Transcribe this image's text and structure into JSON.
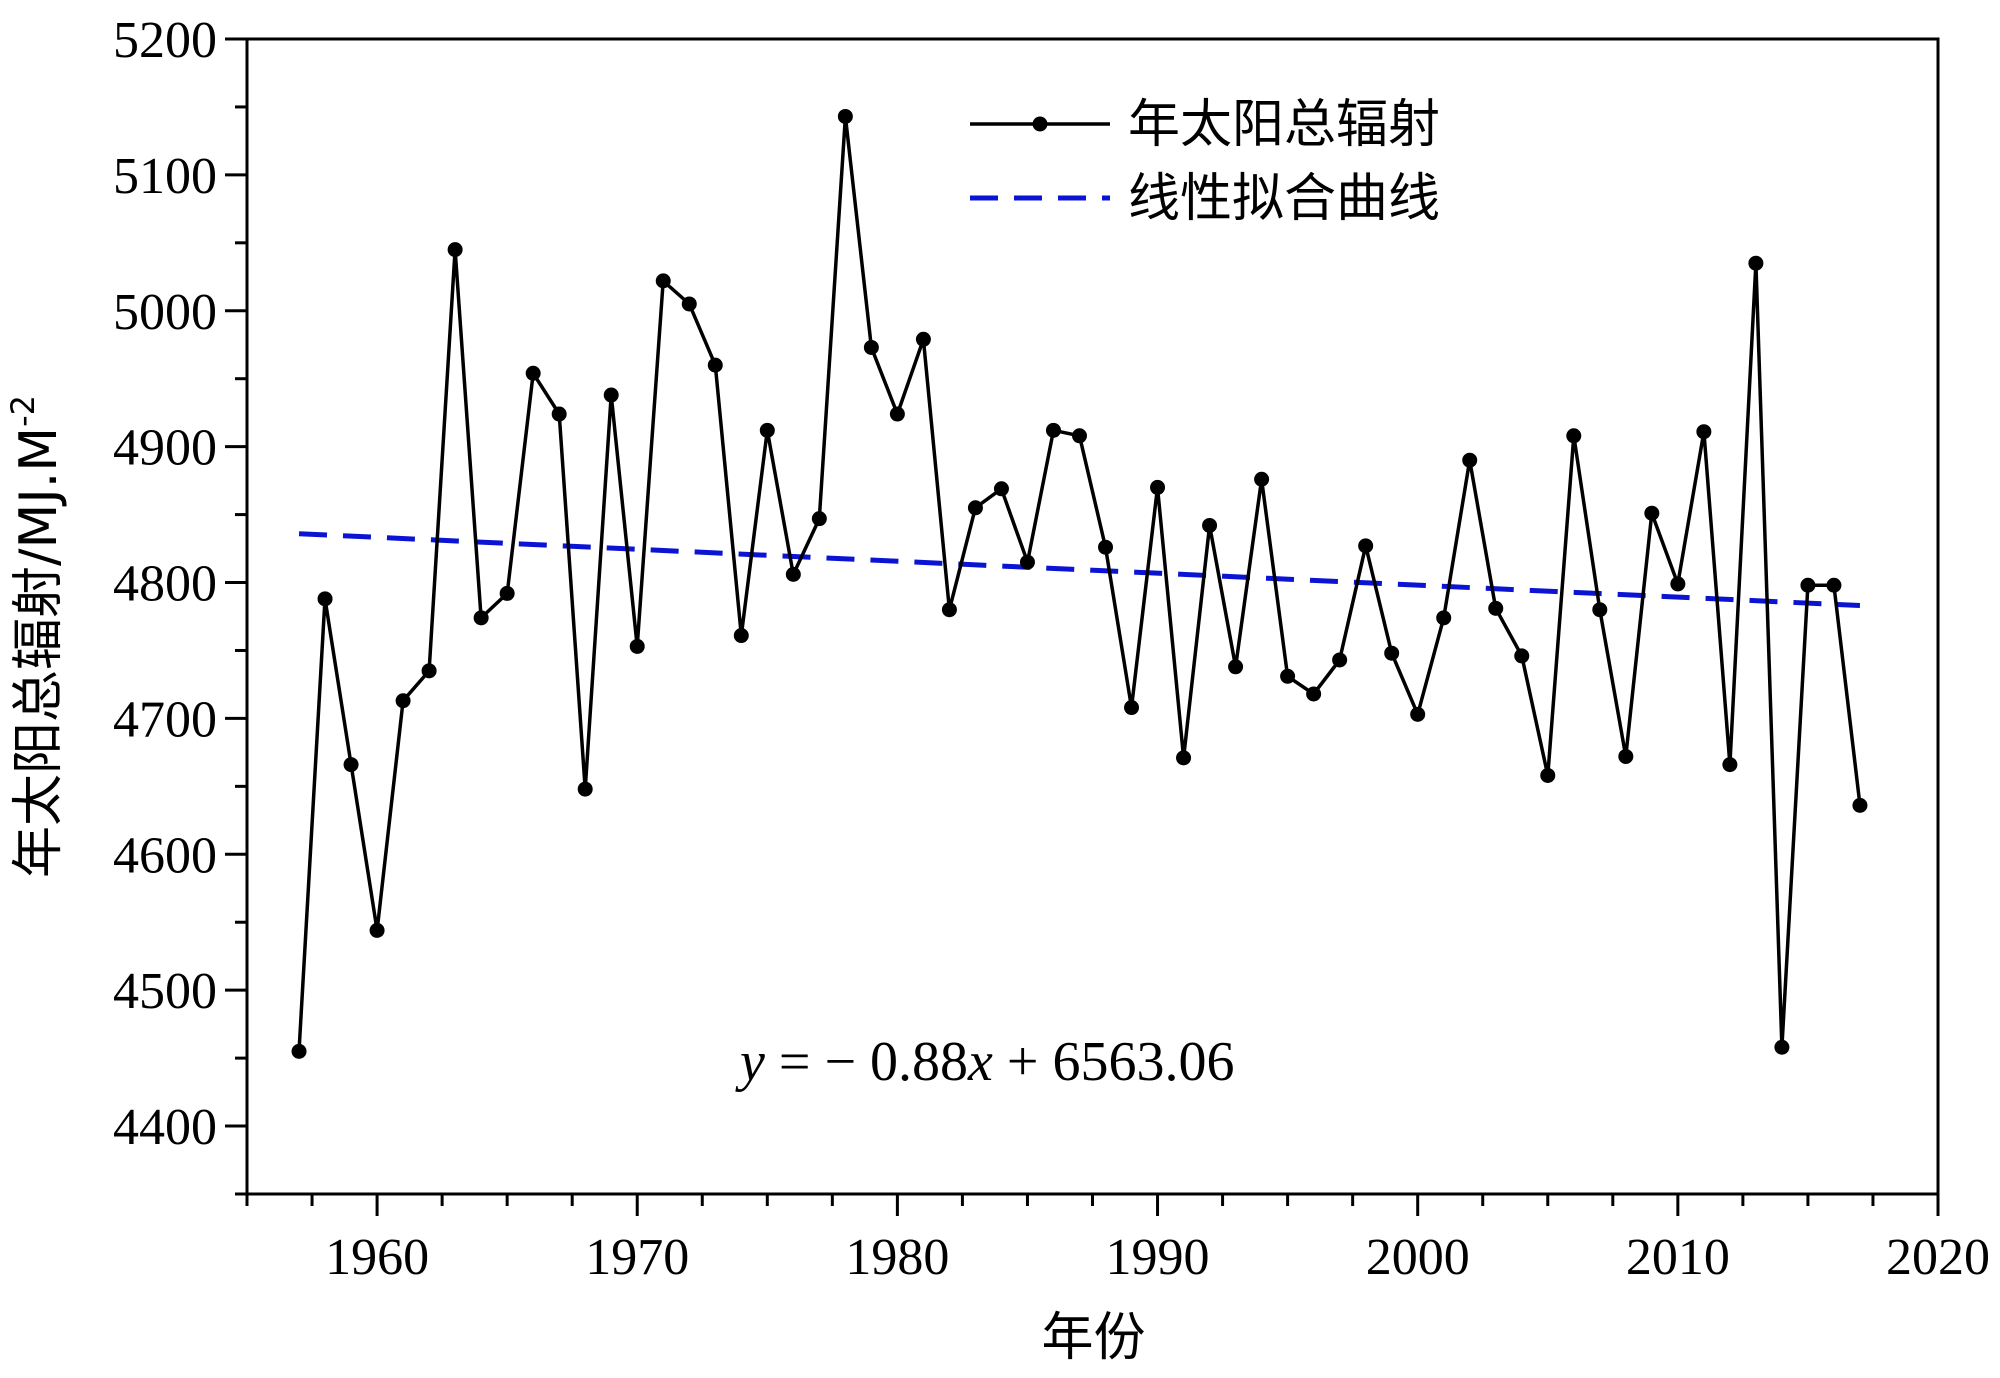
{
  "chart_data": {
    "type": "line",
    "xlabel": "年份",
    "ylabel": "年太阳总辐射/MJ.M",
    "ylabel_sup": "-2",
    "xlim": [
      1955,
      2020
    ],
    "ylim": [
      4350,
      5200
    ],
    "xticks": [
      1960,
      1970,
      1980,
      1990,
      2000,
      2010,
      2020
    ],
    "yticks": [
      4400,
      4500,
      4600,
      4700,
      4800,
      4900,
      5000,
      5100,
      5200
    ],
    "x_minor_step": 2.5,
    "y_minor_step": 50,
    "grid": false,
    "legend_position": "top-center",
    "equation": {
      "lhs": "y",
      "rhs_prefix": " = − 0.88",
      "var": "x",
      "rhs_suffix": " + 6563.06"
    },
    "series": [
      {
        "name": "年太阳总辐射",
        "style": "line-marker",
        "color": "#000000",
        "x": [
          1957,
          1958,
          1959,
          1960,
          1961,
          1962,
          1963,
          1964,
          1965,
          1966,
          1967,
          1968,
          1969,
          1970,
          1971,
          1972,
          1973,
          1974,
          1975,
          1976,
          1977,
          1978,
          1979,
          1980,
          1981,
          1982,
          1983,
          1984,
          1985,
          1986,
          1987,
          1988,
          1989,
          1990,
          1991,
          1992,
          1993,
          1994,
          1995,
          1996,
          1997,
          1998,
          1999,
          2000,
          2001,
          2002,
          2003,
          2004,
          2005,
          2006,
          2007,
          2008,
          2009,
          2010,
          2011,
          2012,
          2013,
          2014,
          2015,
          2016,
          2017
        ],
        "values": [
          4455,
          4788,
          4666,
          4544,
          4713,
          4735,
          5045,
          4774,
          4792,
          4954,
          4924,
          4648,
          4938,
          4753,
          5022,
          5005,
          4960,
          4761,
          4912,
          4806,
          4847,
          5143,
          4973,
          4924,
          4979,
          4780,
          4855,
          4869,
          4815,
          4912,
          4908,
          4826,
          4708,
          4870,
          4671,
          4842,
          4738,
          4876,
          4731,
          4718,
          4743,
          4827,
          4748,
          4703,
          4774,
          4890,
          4781,
          4746,
          4658,
          4908,
          4780,
          4672,
          4851,
          4799,
          4911,
          4666,
          5035,
          4458,
          4798,
          4798,
          4636
        ]
      },
      {
        "name": "线性拟合曲线",
        "style": "dashed",
        "color": "#0a14d2",
        "x": [
          1957,
          2017
        ],
        "values": [
          4835.9,
          4783.1
        ]
      }
    ]
  }
}
